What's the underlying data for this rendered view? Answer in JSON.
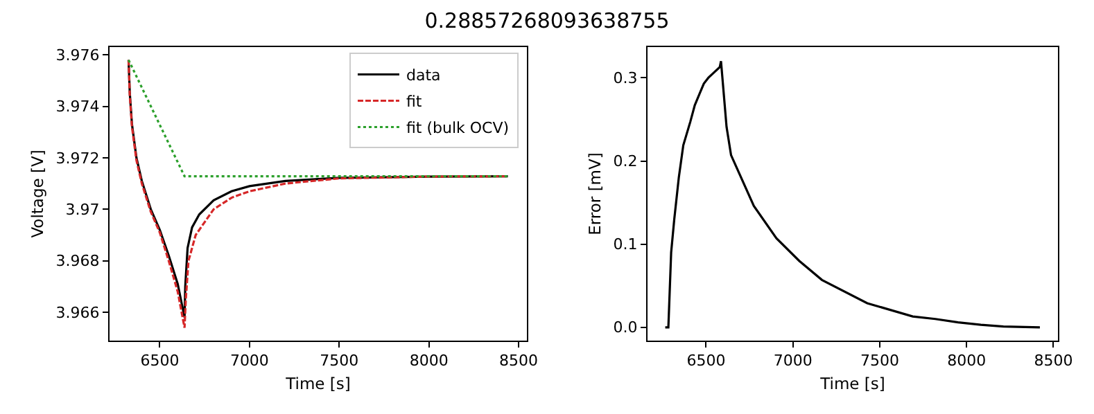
{
  "chart_data": [
    {
      "type": "line",
      "title": "0.28857268093638755",
      "xlabel": "Time [s]",
      "ylabel": "Voltage [V]",
      "xlim": [
        6220,
        8546
      ],
      "ylim": [
        3.9649,
        3.9763
      ],
      "xticks": [
        6500,
        7000,
        7500,
        8000,
        8500
      ],
      "yticks": [
        3.966,
        3.968,
        3.97,
        3.972,
        3.974,
        3.976
      ],
      "grid": false,
      "legend": "top right",
      "marker": "none",
      "series": [
        {
          "name": "data",
          "color": "#000000",
          "line_style": "solid",
          "x": [
            6326,
            6333,
            6345,
            6370,
            6400,
            6450,
            6500,
            6550,
            6600,
            6638,
            6642,
            6655,
            6680,
            6720,
            6800,
            6900,
            7000,
            7200,
            7500,
            8000,
            8440
          ],
          "values": [
            3.9758,
            3.9745,
            3.9733,
            3.972,
            3.9711,
            3.97,
            3.9692,
            3.9682,
            3.9671,
            3.9658,
            3.967,
            3.9685,
            3.9693,
            3.9698,
            3.97035,
            3.9707,
            3.9709,
            3.9711,
            3.97122,
            3.97127,
            3.97128
          ]
        },
        {
          "name": "fit",
          "color": "#d62728",
          "line_style": "dashed",
          "x": [
            6326,
            6333,
            6345,
            6370,
            6400,
            6450,
            6500,
            6550,
            6600,
            6638,
            6645,
            6660,
            6700,
            6800,
            6900,
            7000,
            7200,
            7500,
            8000,
            8440
          ],
          "values": [
            3.9758,
            3.9744,
            3.9732,
            3.9719,
            3.971,
            3.9699,
            3.9691,
            3.968,
            3.9668,
            3.9654,
            3.9665,
            3.968,
            3.969,
            3.97,
            3.97045,
            3.9707,
            3.971,
            3.9712,
            3.97127,
            3.97128
          ]
        },
        {
          "name": "fit (bulk OCV)",
          "color": "#2ca02c",
          "line_style": "dotted",
          "x": [
            6326,
            6638,
            8440
          ],
          "values": [
            3.9758,
            3.97128,
            3.97128
          ]
        }
      ]
    },
    {
      "type": "line",
      "xlabel": "Time [s]",
      "ylabel": "Error [mV]",
      "xlim": [
        6163,
        8526
      ],
      "ylim": [
        -0.016,
        0.337
      ],
      "xticks": [
        6500,
        7000,
        7500,
        8000,
        8500
      ],
      "yticks": [
        {
          "value": 0,
          "label": "0.0"
        },
        0.1,
        0.2,
        0.3
      ],
      "grid": false,
      "legend": false,
      "marker": "none",
      "series": [
        {
          "color": "#000000",
          "line_style": "solid",
          "x": [
            6265,
            6283,
            6299,
            6317,
            6343,
            6369,
            6409,
            6435,
            6461,
            6487,
            6513,
            6579,
            6586,
            6618,
            6644,
            6775,
            6905,
            7036,
            7167,
            7428,
            7690,
            7820,
            7951,
            8082,
            8212,
            8422
          ],
          "values": [
            0,
            0,
            0.09,
            0.13,
            0.18,
            0.219,
            0.247,
            0.267,
            0.28,
            0.293,
            0.3,
            0.313,
            0.32,
            0.241,
            0.207,
            0.146,
            0.107,
            0.08,
            0.057,
            0.029,
            0.013,
            0.01,
            0.006,
            0.003,
            0.001,
            0
          ]
        }
      ]
    }
  ]
}
